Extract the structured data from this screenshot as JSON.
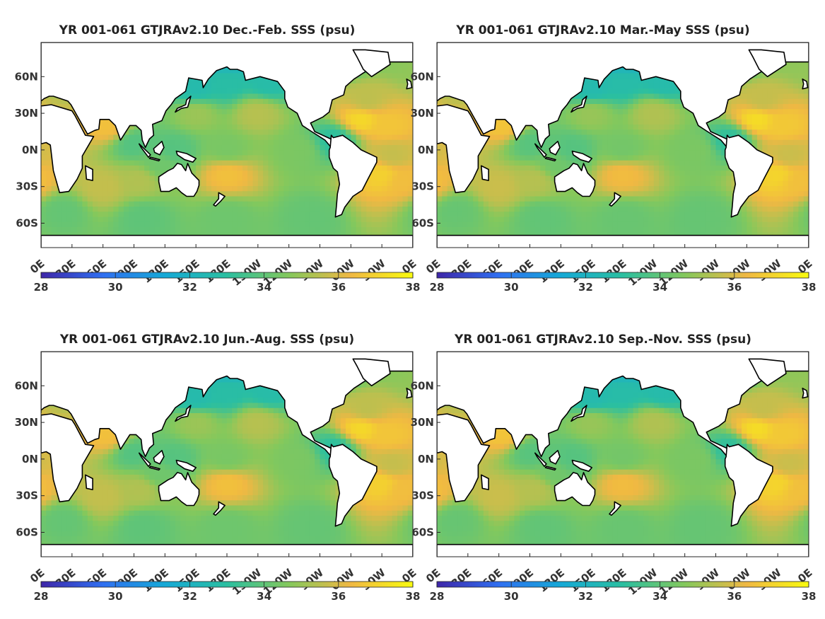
{
  "chart_data": [
    {
      "type": "heatmap",
      "title": "YR 001-061 GTJRAv2.10 Dec.-Feb. SSS (psu)",
      "season": "Dec.-Feb.",
      "x_ticks": [
        "0E",
        "30E",
        "60E",
        "90E",
        "120E",
        "150E",
        "180E",
        "150W",
        "120W",
        "90W",
        "60W",
        "30W",
        "0E"
      ],
      "y_ticks": [
        "60N",
        "30N",
        "0N",
        "30S",
        "60S"
      ],
      "colorbar": {
        "min": 28,
        "max": 38,
        "ticks": [
          28,
          30,
          32,
          34,
          36,
          38
        ]
      },
      "colormap": [
        "#3e26a8",
        "#2f6ff1",
        "#15a9d6",
        "#2bbfa0",
        "#84c85c",
        "#f0b843",
        "#f9fb0e"
      ]
    },
    {
      "type": "heatmap",
      "title": "YR 001-061 GTJRAv2.10 Mar.-May SSS (psu)",
      "season": "Mar.-May",
      "x_ticks": [
        "0E",
        "30E",
        "60E",
        "90E",
        "120E",
        "150E",
        "180E",
        "150W",
        "120W",
        "90W",
        "60W",
        "30W",
        "0E"
      ],
      "y_ticks": [
        "60N",
        "30N",
        "0N",
        "30S",
        "60S"
      ],
      "colorbar": {
        "min": 28,
        "max": 38,
        "ticks": [
          28,
          30,
          32,
          34,
          36,
          38
        ]
      },
      "colormap": [
        "#3e26a8",
        "#2f6ff1",
        "#15a9d6",
        "#2bbfa0",
        "#84c85c",
        "#f0b843",
        "#f9fb0e"
      ]
    },
    {
      "type": "heatmap",
      "title": "YR 001-061 GTJRAv2.10 Jun.-Aug. SSS (psu)",
      "season": "Jun.-Aug.",
      "x_ticks": [
        "0E",
        "30E",
        "60E",
        "90E",
        "120E",
        "150E",
        "180E",
        "150W",
        "120W",
        "90W",
        "60W",
        "30W",
        "0E"
      ],
      "y_ticks": [
        "60N",
        "30N",
        "0N",
        "30S",
        "60S"
      ],
      "colorbar": {
        "min": 28,
        "max": 38,
        "ticks": [
          28,
          30,
          32,
          34,
          36,
          38
        ]
      },
      "colormap": [
        "#3e26a8",
        "#2f6ff1",
        "#15a9d6",
        "#2bbfa0",
        "#84c85c",
        "#f0b843",
        "#f9fb0e"
      ]
    },
    {
      "type": "heatmap",
      "title": "YR 001-061 GTJRAv2.10 Sep.-Nov. SSS (psu)",
      "season": "Sep.-Nov.",
      "x_ticks": [
        "0E",
        "30E",
        "60E",
        "90E",
        "120E",
        "150E",
        "180E",
        "150W",
        "120W",
        "90W",
        "60W",
        "30W",
        "0E"
      ],
      "y_ticks": [
        "60N",
        "30N",
        "0N",
        "30S",
        "60S"
      ],
      "colorbar": {
        "min": 28,
        "max": 38,
        "ticks": [
          28,
          30,
          32,
          34,
          36,
          38
        ]
      },
      "colormap": [
        "#3e26a8",
        "#2f6ff1",
        "#15a9d6",
        "#2bbfa0",
        "#84c85c",
        "#f0b843",
        "#f9fb0e"
      ]
    }
  ]
}
